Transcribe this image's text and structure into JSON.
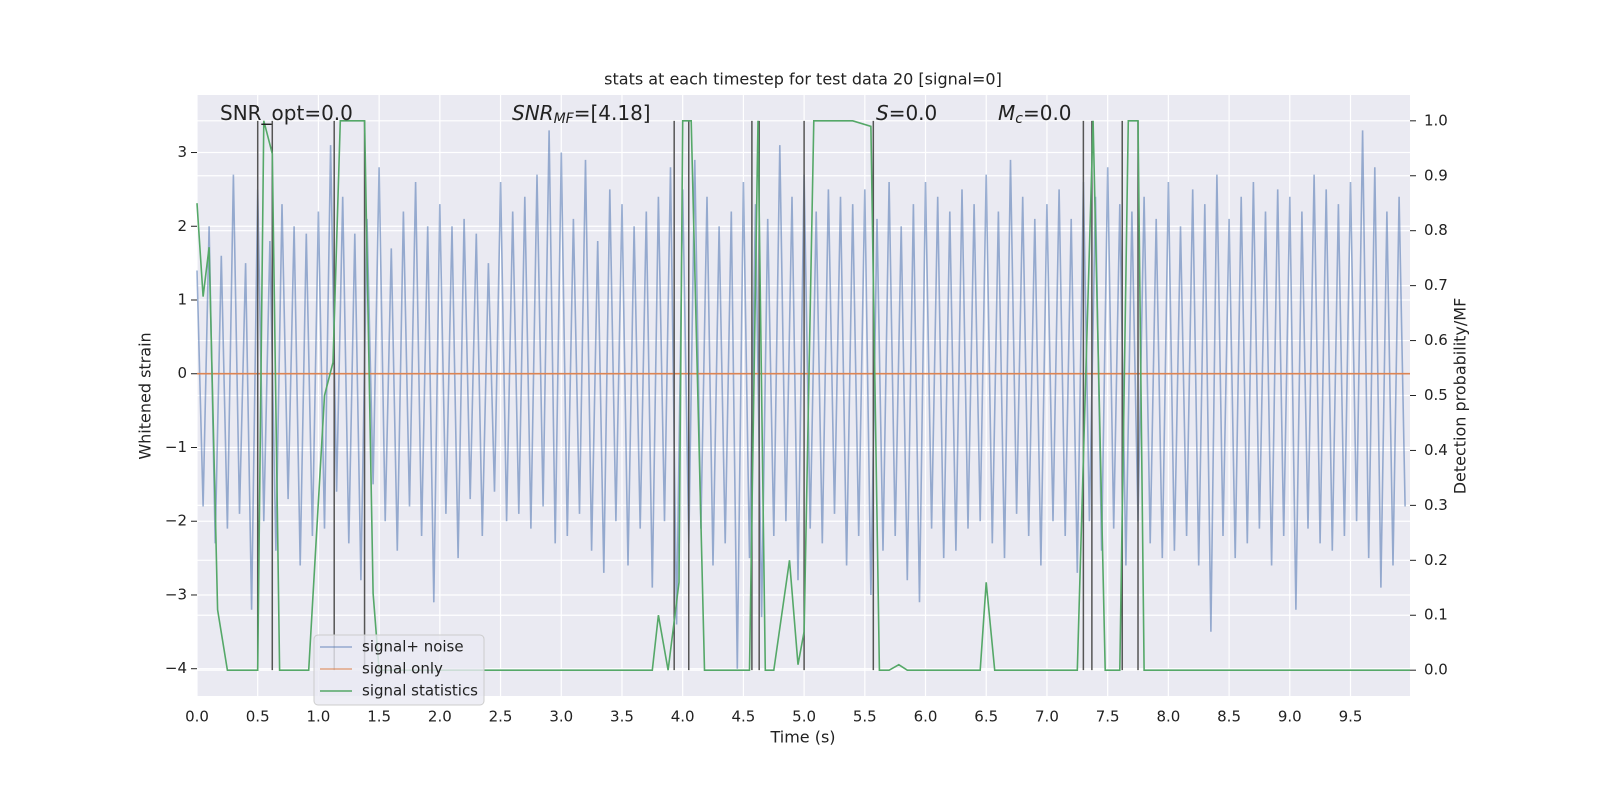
{
  "chart_data": {
    "type": "line",
    "title": "stats at each timestep for test data 20 [signal=0]",
    "x_label": "Time (s)",
    "y_label": "Whitened strain",
    "y2_label": "Detection probability/MF",
    "grid": true,
    "legend": "lower left",
    "annotations": [
      {
        "main": "SNR_opt=0.0"
      },
      {
        "main": "SNR",
        "sub": "MF",
        "rest": "=[4.18]"
      },
      {
        "main": "S",
        "rest": "=0.0"
      },
      {
        "main": "M",
        "sub": "c",
        "rest": "=0.0"
      }
    ],
    "xlim": [
      0,
      9.99
    ],
    "ylim": [
      -4.37,
      3.78
    ],
    "y2lim": [
      -0.047,
      1.047
    ],
    "xticks": [
      {
        "value": 0,
        "label": "0.0"
      },
      0.5,
      {
        "value": 1,
        "label": "1.0"
      },
      1.5,
      {
        "value": 2,
        "label": "2.0"
      },
      2.5,
      {
        "value": 3,
        "label": "3.0"
      },
      3.5,
      {
        "value": 4,
        "label": "4.0"
      },
      4.5,
      {
        "value": 5,
        "label": "5.0"
      },
      5.5,
      {
        "value": 6,
        "label": "6.0"
      },
      6.5,
      {
        "value": 7,
        "label": "7.0"
      },
      7.5,
      {
        "value": 8,
        "label": "8.0"
      },
      8.5,
      {
        "value": 9,
        "label": "9.0"
      },
      9.5
    ],
    "yticks": [
      {
        "value": -4,
        "label": "−4"
      },
      {
        "value": -3,
        "label": "−3"
      },
      {
        "value": -2,
        "label": "−2"
      },
      {
        "value": -1,
        "label": "−1"
      },
      0,
      1,
      2,
      3
    ],
    "y2ticks": [
      {
        "value": 0,
        "label": "0.0"
      },
      0.1,
      0.2,
      0.3,
      0.4,
      0.5,
      0.6,
      0.7,
      0.8,
      0.9,
      {
        "value": 1,
        "label": "1.0"
      }
    ],
    "series": [
      {
        "name": "signal+ noise",
        "color": "#4c72b0",
        "x": [
          0,
          0.05,
          0.1,
          0.15,
          0.2,
          0.25,
          0.3,
          0.35,
          0.4,
          0.45,
          0.5,
          0.55,
          0.6,
          0.65,
          0.7,
          0.75,
          0.8,
          0.85,
          0.9,
          0.95,
          1,
          1.05,
          1.1,
          1.15,
          1.2,
          1.25,
          1.3,
          1.35,
          1.4,
          1.45,
          1.5,
          1.55,
          1.6,
          1.65,
          1.7,
          1.75,
          1.8,
          1.85,
          1.9,
          1.95,
          2,
          2.05,
          2.1,
          2.15,
          2.2,
          2.25,
          2.3,
          2.35,
          2.4,
          2.45,
          2.5,
          2.55,
          2.6,
          2.65,
          2.7,
          2.75,
          2.8,
          2.85,
          2.9,
          2.95,
          3,
          3.05,
          3.1,
          3.15,
          3.2,
          3.25,
          3.3,
          3.35,
          3.4,
          3.45,
          3.5,
          3.55,
          3.6,
          3.65,
          3.7,
          3.75,
          3.8,
          3.85,
          3.9,
          3.95,
          4,
          4.05,
          4.1,
          4.15,
          4.2,
          4.25,
          4.3,
          4.35,
          4.4,
          4.45,
          4.5,
          4.55,
          4.6,
          4.65,
          4.7,
          4.75,
          4.8,
          4.85,
          4.9,
          4.95,
          5,
          5.05,
          5.1,
          5.15,
          5.2,
          5.25,
          5.3,
          5.35,
          5.4,
          5.45,
          5.5,
          5.55,
          5.6,
          5.65,
          5.7,
          5.75,
          5.8,
          5.85,
          5.9,
          5.95,
          6,
          6.05,
          6.1,
          6.15,
          6.2,
          6.25,
          6.3,
          6.35,
          6.4,
          6.45,
          6.5,
          6.55,
          6.6,
          6.65,
          6.7,
          6.75,
          6.8,
          6.85,
          6.9,
          6.95,
          7,
          7.05,
          7.1,
          7.15,
          7.2,
          7.25,
          7.3,
          7.35,
          7.4,
          7.45,
          7.5,
          7.55,
          7.6,
          7.65,
          7.7,
          7.75,
          7.8,
          7.85,
          7.9,
          7.95,
          8,
          8.05,
          8.1,
          8.15,
          8.2,
          8.25,
          8.3,
          8.35,
          8.4,
          8.45,
          8.5,
          8.55,
          8.6,
          8.65,
          8.7,
          8.75,
          8.8,
          8.85,
          8.9,
          8.95,
          9,
          9.05,
          9.1,
          9.15,
          9.2,
          9.25,
          9.3,
          9.35,
          9.4,
          9.45,
          9.5,
          9.55,
          9.6,
          9.65,
          9.7,
          9.75,
          9.8,
          9.85,
          9.9,
          9.95
        ],
        "values": [
          1.4,
          -1.8,
          2.0,
          -2.3,
          1.6,
          -2.1,
          2.7,
          -1.9,
          1.5,
          -3.2,
          2.5,
          -2.0,
          1.8,
          -2.4,
          2.3,
          -1.7,
          2.0,
          -2.6,
          1.9,
          -2.2,
          2.2,
          -2.1,
          3.1,
          -1.6,
          2.4,
          -2.3,
          1.9,
          -2.8,
          2.1,
          -1.5,
          2.8,
          -2.0,
          1.7,
          -2.4,
          2.2,
          -1.8,
          2.6,
          -2.2,
          2.0,
          -3.1,
          2.3,
          -1.9,
          2.0,
          -2.5,
          2.1,
          -1.7,
          1.9,
          -2.2,
          1.5,
          -1.6,
          2.6,
          -2.0,
          2.2,
          -1.9,
          2.4,
          -2.1,
          2.7,
          -1.8,
          3.3,
          -2.3,
          3.0,
          -2.2,
          2.1,
          -1.9,
          2.9,
          -2.4,
          1.8,
          -2.7,
          2.5,
          -2.0,
          2.3,
          -2.6,
          2.0,
          -2.1,
          2.2,
          -2.9,
          2.4,
          -2.0,
          2.8,
          -3.4,
          2.5,
          -2.3,
          2.9,
          -2.1,
          2.4,
          -2.6,
          2.0,
          -2.3,
          2.2,
          -4.0,
          2.6,
          -2.5,
          2.3,
          -3.3,
          2.1,
          -2.2,
          3.1,
          -2.0,
          2.4,
          -2.8,
          2.7,
          -2.1,
          2.2,
          -2.3,
          2.5,
          -1.9,
          2.4,
          -2.6,
          2.3,
          -2.2,
          2.5,
          -3.0,
          2.1,
          -2.4,
          2.6,
          -2.2,
          2.0,
          -2.8,
          2.3,
          -3.1,
          2.6,
          -2.1,
          2.4,
          -2.5,
          2.2,
          -2.4,
          2.5,
          -2.1,
          2.3,
          -2.0,
          2.7,
          -2.3,
          2.2,
          -2.5,
          2.9,
          -1.9,
          2.4,
          -2.2,
          2.1,
          -2.6,
          2.3,
          -2.0,
          2.5,
          -2.2,
          2.1,
          -2.7,
          2.6,
          -2.0,
          2.4,
          -2.4,
          2.8,
          -2.1,
          2.3,
          -2.6,
          2.2,
          -2.0,
          2.4,
          -2.3,
          2.1,
          -2.5,
          2.6,
          -2.4,
          2.0,
          -2.2,
          2.5,
          -2.6,
          2.3,
          -3.5,
          2.7,
          -2.2,
          2.1,
          -2.5,
          2.4,
          -2.3,
          2.6,
          -2.1,
          2.2,
          -2.6,
          2.5,
          -2.2,
          2.4,
          -3.2,
          2.2,
          -2.1,
          2.7,
          -2.3,
          2.5,
          -2.4,
          2.3,
          -2.2,
          2.6,
          -2.0,
          3.3,
          -2.5,
          2.8,
          -2.9,
          2.2,
          -2.6,
          2.4,
          -1.8
        ]
      },
      {
        "name": "signal only",
        "color": "#dd8452",
        "x": [
          0,
          9.99
        ],
        "values": [
          0,
          0
        ]
      },
      {
        "name": "signal statistics",
        "color": "#55a868",
        "axis": "y2",
        "x": [
          0,
          0.05,
          0.1,
          0.17,
          0.25,
          0.5,
          0.55,
          0.62,
          0.68,
          0.92,
          1.05,
          1.12,
          1.18,
          1.38,
          1.45,
          1.5,
          3.75,
          3.8,
          3.88,
          3.97,
          4.0,
          4.07,
          4.18,
          4.55,
          4.62,
          4.68,
          4.75,
          4.88,
          4.95,
          5.0,
          5.08,
          5.4,
          5.55,
          5.62,
          5.7,
          5.78,
          5.85,
          6.45,
          6.5,
          6.57,
          7.25,
          7.38,
          7.48,
          7.6,
          7.67,
          7.75,
          7.8,
          9.99
        ],
        "values": [
          0.85,
          0.68,
          0.77,
          0.11,
          0,
          0,
          1.0,
          0.94,
          0,
          0,
          0.5,
          0.56,
          1.0,
          1.0,
          0.14,
          0,
          0,
          0.1,
          0,
          0.16,
          1.0,
          1.0,
          0,
          0,
          1.0,
          0,
          0,
          0.2,
          0.01,
          0.07,
          1.0,
          1.0,
          0.99,
          0,
          0,
          0.01,
          0,
          0,
          0.16,
          0,
          0,
          1.0,
          0,
          0,
          1.0,
          1.0,
          0,
          0
        ]
      }
    ],
    "event_lines": [
      0.5,
      0.62,
      1.13,
      1.38,
      3.93,
      4.05,
      4.57,
      4.63,
      5.0,
      5.57,
      7.3,
      7.37,
      7.62,
      7.75
    ],
    "event_color": "#555555"
  }
}
